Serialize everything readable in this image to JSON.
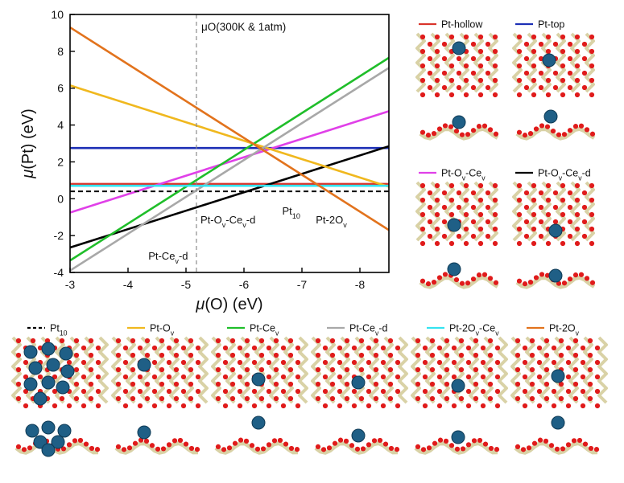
{
  "chart_data": {
    "type": "line",
    "xlabel_mu": "μ",
    "xlabel_rest": "(O) (eV)",
    "ylabel_mu": "μ",
    "ylabel_rest": "(Pt) (eV)",
    "xlim": [
      -3,
      -8.5
    ],
    "ylim": [
      -4,
      10
    ],
    "x_ticks": [
      {
        "v": -3,
        "label": "-3"
      },
      {
        "v": -4,
        "label": "-4"
      },
      {
        "v": -5,
        "label": "-5"
      },
      {
        "v": -6,
        "label": "-6"
      },
      {
        "v": -7,
        "label": "-7"
      },
      {
        "v": -8,
        "label": "-8"
      }
    ],
    "y_ticks": [
      {
        "v": -4,
        "label": "-4"
      },
      {
        "v": -2,
        "label": "-2"
      },
      {
        "v": 0,
        "label": "0"
      },
      {
        "v": 2,
        "label": "2"
      },
      {
        "v": 4,
        "label": "4"
      },
      {
        "v": 6,
        "label": "6"
      },
      {
        "v": 8,
        "label": "8"
      },
      {
        "v": 10,
        "label": "10"
      }
    ],
    "reference_line": {
      "x": -5.18,
      "label_mu": "μ",
      "label_rest": "O(300K & 1atm)"
    },
    "series": [
      {
        "name": "Pt-hollow",
        "color": "#d9342b",
        "x": [
          -3,
          -8.5
        ],
        "y": [
          0.8,
          0.8
        ]
      },
      {
        "name": "Pt-top",
        "color": "#1c2fb5",
        "x": [
          -3,
          -8.5
        ],
        "y": [
          2.75,
          2.75
        ]
      },
      {
        "name": "Pt-OV-CeV",
        "color": "#e040e8",
        "x": [
          -3,
          -8.5
        ],
        "y": [
          -0.75,
          4.75
        ]
      },
      {
        "name": "Pt-OV-CeV-d",
        "color": "#000000",
        "x": [
          -3,
          -8.5
        ],
        "y": [
          -2.65,
          2.85
        ]
      },
      {
        "name": "Pt10",
        "color": "#000000",
        "dashed": true,
        "x": [
          -3,
          -8.5
        ],
        "y": [
          0.4,
          0.4
        ]
      },
      {
        "name": "Pt-OV",
        "color": "#f0b81e",
        "x": [
          -3,
          -8.5
        ],
        "y": [
          6.15,
          0.65
        ]
      },
      {
        "name": "Pt-CeV",
        "color": "#1fbe2a",
        "x": [
          -3,
          -8.5
        ],
        "y": [
          -3.35,
          7.65
        ]
      },
      {
        "name": "Pt-CeV-d",
        "color": "#a8a8a8",
        "x": [
          -3,
          -8.5
        ],
        "y": [
          -3.9,
          7.1
        ]
      },
      {
        "name": "Pt-2OV-CeV",
        "color": "#35e3f0",
        "x": [
          -3,
          -8.5
        ],
        "y": [
          0.7,
          0.7
        ]
      },
      {
        "name": "Pt-2OV",
        "color": "#e2731d",
        "x": [
          -3,
          -8.5
        ],
        "y": [
          9.3,
          -1.7
        ]
      }
    ],
    "annotations": [
      {
        "base": "Pt-Ce",
        "sub": "v",
        "tail": "-d",
        "x": -4.35,
        "y": -3.3
      },
      {
        "base": "Pt-O",
        "sub": "v",
        "mid": "-Ce",
        "sub2": "v",
        "tail": "-d",
        "x": -5.25,
        "y": -1.35
      },
      {
        "base": "Pt",
        "sub": "10",
        "x": -6.66,
        "y": -0.85
      },
      {
        "base": "Pt-2O",
        "sub": "v",
        "x": -7.24,
        "y": -1.35
      }
    ]
  },
  "structure_panels": {
    "right_column": [
      {
        "label": "Pt-hollow",
        "color": "#d9342b"
      },
      {
        "label": "Pt-top",
        "color": "#1c2fb5"
      },
      {
        "label": "Pt-O",
        "sub": "v",
        "mid": "-Ce",
        "sub2": "v",
        "tail": "",
        "color": "#e040e8"
      },
      {
        "label": "Pt-O",
        "sub": "v",
        "mid": "-Ce",
        "sub2": "v",
        "tail": "-d",
        "color": "#000000"
      }
    ],
    "bottom_row": [
      {
        "label": "Pt",
        "sub": "10",
        "color": "#000000",
        "dashed": true
      },
      {
        "label": "Pt-O",
        "sub": "v",
        "color": "#f0b81e"
      },
      {
        "label": "Pt-Ce",
        "sub": "v",
        "color": "#1fbe2a"
      },
      {
        "label": "Pt-Ce",
        "sub": "v",
        "tail": "-d",
        "color": "#a8a8a8"
      },
      {
        "label": "Pt-2O",
        "sub": "v",
        "mid": "-Ce",
        "sub2": "v",
        "color": "#35e3f0"
      },
      {
        "label": "Pt-2O",
        "sub": "v",
        "color": "#e2731d"
      }
    ]
  },
  "colors": {
    "oxygen": "#e01b1b",
    "cerium_bond": "#d9d2a6",
    "platinum": "#1f5f86",
    "axis": "#000000",
    "reference": "#8a8a8a"
  }
}
